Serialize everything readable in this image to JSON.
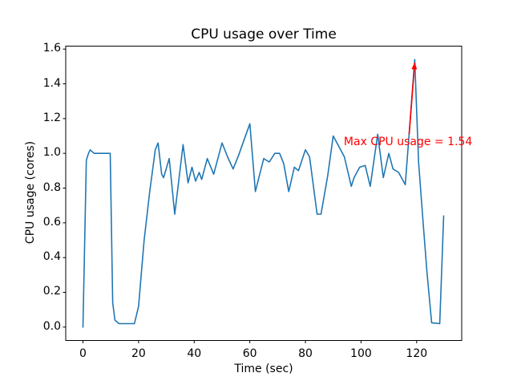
{
  "chart_data": {
    "type": "line",
    "title": "CPU usage over Time",
    "xlabel": "Time (sec)",
    "ylabel": "CPU usage (cores)",
    "xticks": [
      0,
      20,
      40,
      60,
      80,
      100,
      120
    ],
    "yticks": [
      0.0,
      0.2,
      0.4,
      0.6,
      0.8,
      1.0,
      1.2,
      1.4,
      1.6
    ],
    "xlim": [
      -6.2,
      136.2
    ],
    "ylim": [
      -0.077,
      1.617
    ],
    "grid": false,
    "legend": null,
    "line_color": "#1f77b4",
    "axis_color": "#000000",
    "series": [
      {
        "name": "CPU usage",
        "x": [
          0,
          1.2,
          2,
          2.6,
          4,
          9.8,
          10.7,
          11.5,
          13,
          18.5,
          20,
          22,
          24,
          26,
          27,
          28.3,
          29,
          31,
          33,
          36,
          37.8,
          39.2,
          40.5,
          41.8,
          42.7,
          44.7,
          47,
          50,
          52,
          54,
          56,
          58,
          60,
          62,
          65,
          67,
          69,
          70.7,
          72.2,
          74,
          76,
          77.5,
          80,
          81.5,
          84.2,
          85.6,
          88,
          90,
          92,
          94,
          96.5,
          97.5,
          99.5,
          101.5,
          103.3,
          106,
          108,
          110,
          111.5,
          113.5,
          115.9,
          117.3,
          119.3,
          120.7,
          122.2,
          123.7,
          125.4,
          128.3,
          129.7
        ],
        "y": [
          0.0,
          0.96,
          1.0,
          1.02,
          1.0,
          1.0,
          0.14,
          0.04,
          0.02,
          0.02,
          0.12,
          0.5,
          0.78,
          1.02,
          1.06,
          0.88,
          0.86,
          0.97,
          0.65,
          1.05,
          0.83,
          0.92,
          0.84,
          0.89,
          0.85,
          0.97,
          0.88,
          1.06,
          0.98,
          0.91,
          0.99,
          1.08,
          1.17,
          0.78,
          0.97,
          0.95,
          1.0,
          1.0,
          0.94,
          0.78,
          0.92,
          0.9,
          1.02,
          0.98,
          0.65,
          0.65,
          0.87,
          1.1,
          1.04,
          0.98,
          0.81,
          0.86,
          0.92,
          0.93,
          0.81,
          1.11,
          0.86,
          1.0,
          0.91,
          0.89,
          0.82,
          1.11,
          1.54,
          0.95,
          0.63,
          0.32,
          0.025,
          0.02,
          0.64
        ]
      }
    ],
    "annotation": {
      "text": "Max CPU usage = 1.54",
      "color": "#ff0000",
      "text_xy": [
        93.8,
        1.06
      ],
      "arrow_tail_xy": [
        117.3,
        1.11
      ],
      "arrow_head_xy": [
        119.3,
        1.52
      ]
    }
  }
}
